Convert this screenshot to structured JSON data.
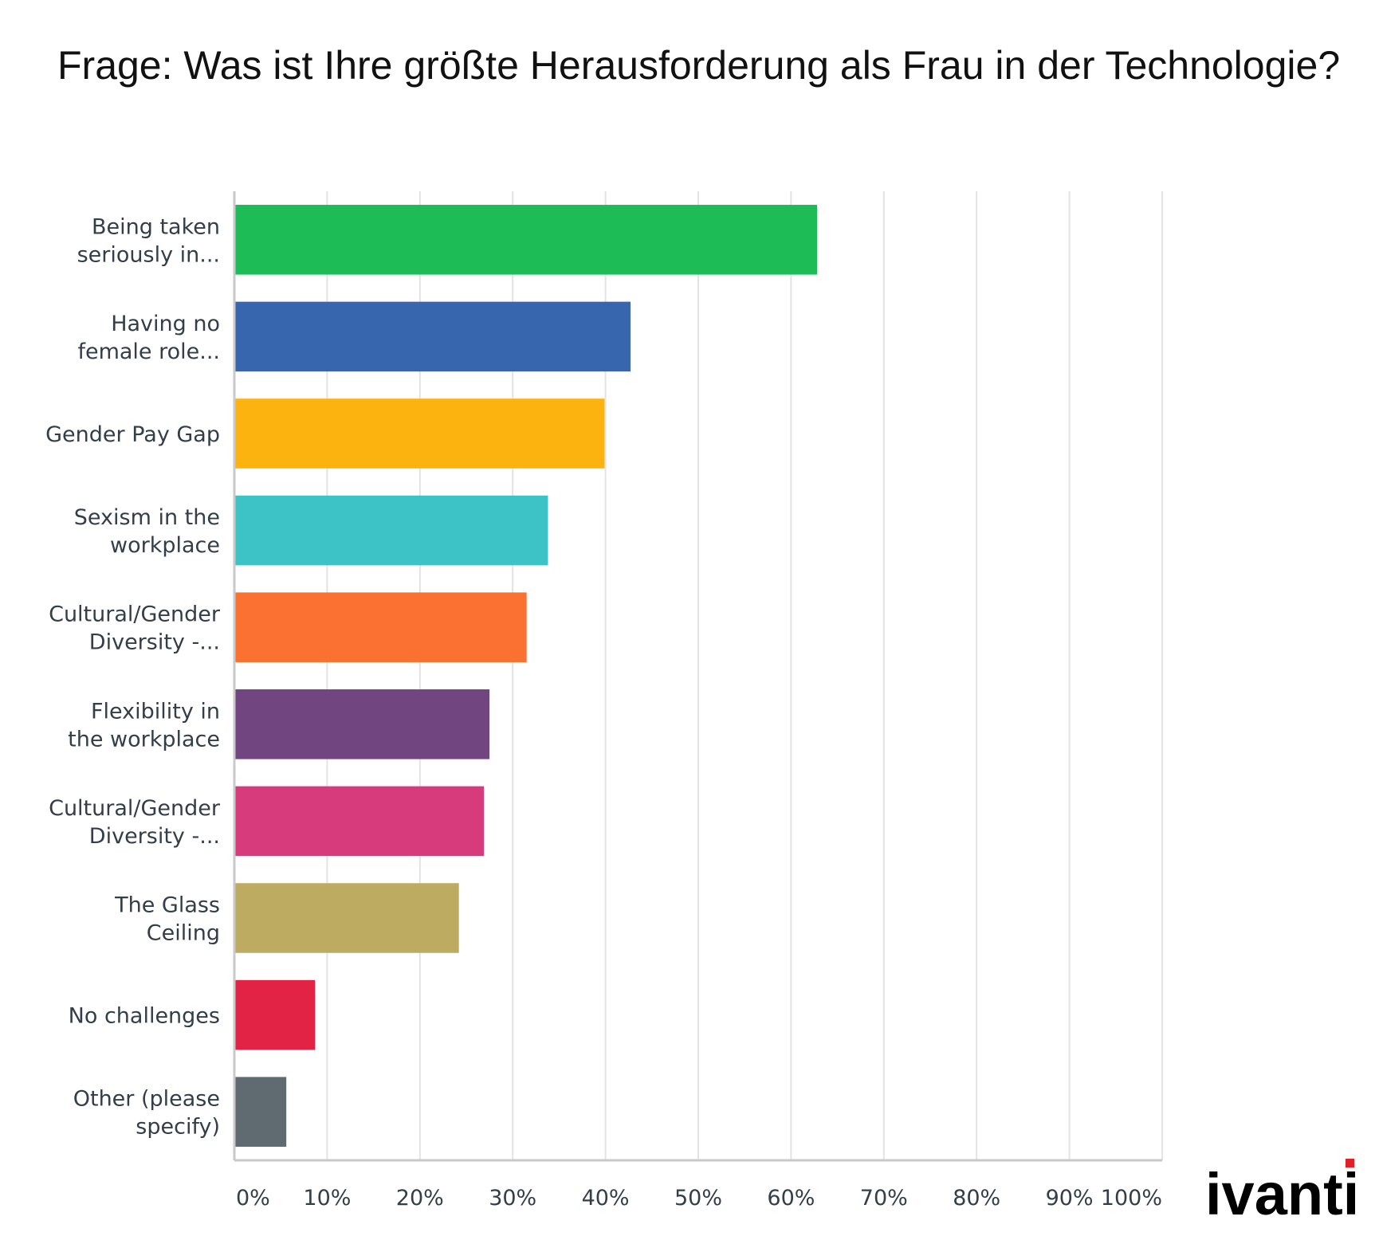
{
  "title": "Frage: Was ist Ihre größte Herausforderung als Frau in der Technologie?",
  "logo": {
    "text": "ivanti",
    "accent_color": "#e11f26"
  },
  "chart_data": {
    "type": "bar",
    "orientation": "horizontal",
    "categories": [
      [
        "Being taken",
        "seriously in..."
      ],
      [
        "Having no",
        "female role..."
      ],
      [
        "Gender Pay Gap"
      ],
      [
        "Sexism in the",
        "workplace"
      ],
      [
        "Cultural/Gender",
        "Diversity -..."
      ],
      [
        "Flexibility in",
        "the workplace"
      ],
      [
        "Cultural/Gender",
        "Diversity -..."
      ],
      [
        "The Glass",
        "Ceiling"
      ],
      [
        "No challenges"
      ],
      [
        "Other (please",
        "specify)"
      ]
    ],
    "values": [
      62.8,
      42.7,
      39.9,
      33.8,
      31.5,
      27.5,
      26.9,
      24.2,
      8.7,
      5.6
    ],
    "colors": [
      "#1dbc57",
      "#3766ae",
      "#fcb20f",
      "#3dc2c6",
      "#fa7132",
      "#71457f",
      "#d83b7c",
      "#bdab61",
      "#e32345",
      "#5f6b71"
    ],
    "xlim": [
      0,
      100
    ],
    "xticks": [
      "0%",
      "10%",
      "20%",
      "30%",
      "40%",
      "50%",
      "60%",
      "70%",
      "80%",
      "90%",
      "100%"
    ],
    "unit": "%",
    "grid": true,
    "legend": "none"
  }
}
